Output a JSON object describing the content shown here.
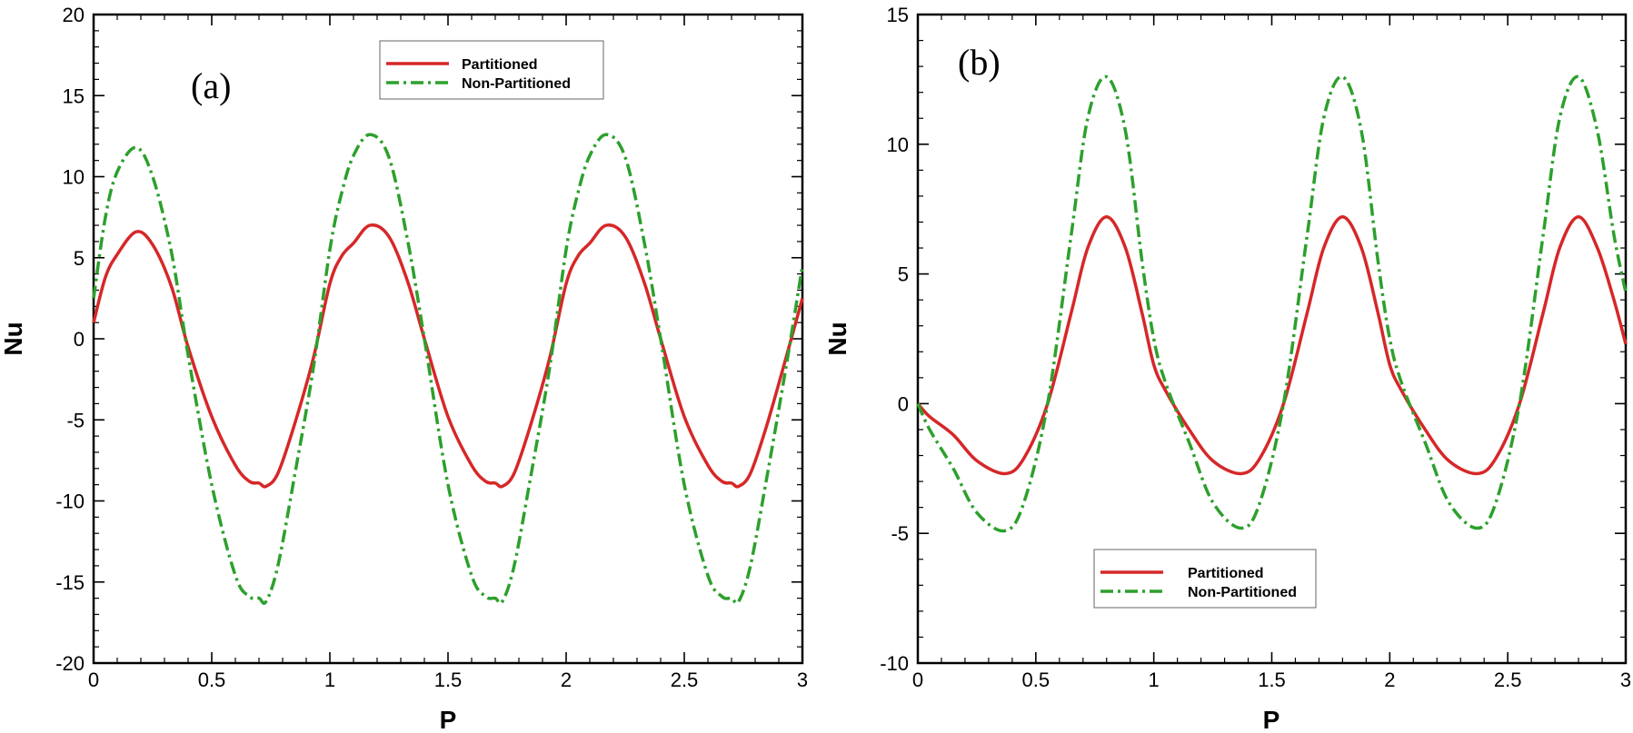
{
  "chart_data": [
    {
      "type": "line",
      "panel_label": "(a)",
      "xlabel": "P",
      "ylabel": "Nu",
      "xlim": [
        0,
        3
      ],
      "ylim": [
        -20,
        20
      ],
      "xticks": [
        0,
        0.5,
        1,
        1.5,
        2,
        2.5,
        3
      ],
      "xtick_labels": [
        "0",
        "0.5",
        "1",
        "1.5",
        "2",
        "2.5",
        "3"
      ],
      "yticks": [
        -20,
        -15,
        -10,
        -5,
        0,
        5,
        10,
        15,
        20
      ],
      "ytick_labels": [
        "-20",
        "-15",
        "-10",
        "-5",
        "0",
        "5",
        "10",
        "15",
        "20"
      ],
      "legend": {
        "position": "top-center"
      },
      "series": [
        {
          "name": "Partitioned",
          "color": "#d62728",
          "style": "solid",
          "x": [
            0,
            0.05,
            0.1,
            0.18,
            0.25,
            0.33,
            0.4,
            0.5,
            0.6,
            0.66,
            0.7,
            0.73,
            0.78,
            0.85,
            0.93,
            1.0,
            1.05,
            1.1,
            1.17,
            1.25,
            1.33,
            1.4,
            1.5,
            1.6,
            1.66,
            1.7,
            1.73,
            1.78,
            1.85,
            1.93,
            2.0,
            2.05,
            2.1,
            2.17,
            2.25,
            2.33,
            2.4,
            2.5,
            2.6,
            2.66,
            2.7,
            2.73,
            2.78,
            2.85,
            2.93,
            3.0
          ],
          "values": [
            1.0,
            3.8,
            5.2,
            6.6,
            5.8,
            3.2,
            -0.5,
            -4.8,
            -7.8,
            -8.8,
            -8.9,
            -9.1,
            -8.3,
            -5.3,
            -1.2,
            3.4,
            5.1,
            5.9,
            7.0,
            6.3,
            3.5,
            0.0,
            -4.8,
            -7.8,
            -8.8,
            -8.9,
            -9.1,
            -8.3,
            -5.3,
            -1.2,
            3.4,
            5.1,
            5.9,
            7.0,
            6.3,
            3.5,
            0.0,
            -4.8,
            -7.8,
            -8.8,
            -8.9,
            -9.1,
            -8.3,
            -5.3,
            -1.2,
            2.5
          ]
        },
        {
          "name": "Non-Partitioned",
          "color": "#2ca02c",
          "style": "dashdot",
          "x": [
            0,
            0.05,
            0.1,
            0.18,
            0.25,
            0.33,
            0.4,
            0.5,
            0.6,
            0.66,
            0.7,
            0.73,
            0.78,
            0.85,
            0.93,
            1.0,
            1.05,
            1.1,
            1.17,
            1.25,
            1.33,
            1.4,
            1.5,
            1.6,
            1.66,
            1.7,
            1.73,
            1.78,
            1.85,
            1.93,
            2.0,
            2.05,
            2.1,
            2.17,
            2.25,
            2.33,
            2.4,
            2.5,
            2.6,
            2.66,
            2.7,
            2.73,
            2.78,
            2.85,
            2.93,
            3.0
          ],
          "values": [
            2.5,
            7.5,
            10.3,
            11.8,
            10.0,
            5.3,
            -1.0,
            -9.0,
            -14.6,
            -15.9,
            -16.0,
            -16.2,
            -14.0,
            -8.5,
            -1.8,
            5.5,
            9.0,
            11.3,
            12.6,
            11.2,
            6.0,
            0.0,
            -9.0,
            -14.6,
            -15.9,
            -16.0,
            -16.2,
            -14.0,
            -8.5,
            -1.8,
            5.5,
            9.0,
            11.3,
            12.6,
            11.2,
            6.0,
            0.0,
            -9.0,
            -14.6,
            -15.9,
            -16.0,
            -16.2,
            -14.0,
            -8.5,
            -1.8,
            4.5
          ]
        }
      ]
    },
    {
      "type": "line",
      "panel_label": "(b)",
      "xlabel": "P",
      "ylabel": "Nu",
      "xlim": [
        0,
        3
      ],
      "ylim": [
        -10,
        15
      ],
      "xticks": [
        0,
        0.5,
        1,
        1.5,
        2,
        2.5,
        3
      ],
      "xtick_labels": [
        "0",
        "0.5",
        "1",
        "1.5",
        "2",
        "2.5",
        "3"
      ],
      "yticks": [
        -10,
        -5,
        0,
        5,
        10,
        15
      ],
      "ytick_labels": [
        "-10",
        "-5",
        "0",
        "5",
        "10",
        "15"
      ],
      "legend": {
        "position": "bottom-center"
      },
      "series": [
        {
          "name": "Partitioned",
          "color": "#d62728",
          "style": "solid",
          "x": [
            0,
            0.05,
            0.15,
            0.25,
            0.37,
            0.45,
            0.55,
            0.65,
            0.72,
            0.8,
            0.88,
            0.95,
            1.0,
            1.05,
            1.15,
            1.25,
            1.37,
            1.45,
            1.55,
            1.65,
            1.72,
            1.8,
            1.88,
            1.95,
            2.0,
            2.05,
            2.15,
            2.25,
            2.37,
            2.45,
            2.55,
            2.65,
            2.72,
            2.8,
            2.88,
            2.95,
            3.0
          ],
          "values": [
            0.0,
            -0.5,
            -1.2,
            -2.2,
            -2.7,
            -2.1,
            0.0,
            3.5,
            6.0,
            7.2,
            6.0,
            3.5,
            1.5,
            0.5,
            -1.0,
            -2.2,
            -2.7,
            -2.1,
            0.0,
            3.5,
            6.0,
            7.2,
            6.0,
            3.5,
            1.5,
            0.5,
            -1.0,
            -2.2,
            -2.7,
            -2.1,
            0.0,
            3.5,
            6.0,
            7.2,
            6.0,
            4.0,
            2.3
          ]
        },
        {
          "name": "Non-Partitioned",
          "color": "#2ca02c",
          "style": "dashdot",
          "x": [
            0,
            0.05,
            0.15,
            0.25,
            0.37,
            0.45,
            0.55,
            0.65,
            0.72,
            0.8,
            0.88,
            0.95,
            1.0,
            1.05,
            1.15,
            1.25,
            1.37,
            1.45,
            1.55,
            1.65,
            1.72,
            1.8,
            1.88,
            1.95,
            2.0,
            2.05,
            2.15,
            2.25,
            2.37,
            2.45,
            2.55,
            2.65,
            2.72,
            2.8,
            2.88,
            2.95,
            3.0
          ],
          "values": [
            0.0,
            -1.0,
            -2.5,
            -4.2,
            -4.9,
            -3.8,
            0.0,
            6.5,
            11.0,
            12.6,
            10.5,
            5.5,
            2.5,
            0.8,
            -1.5,
            -3.8,
            -4.8,
            -3.8,
            0.0,
            6.5,
            11.0,
            12.6,
            10.5,
            5.5,
            2.5,
            0.8,
            -1.5,
            -3.8,
            -4.8,
            -3.8,
            0.0,
            6.5,
            11.0,
            12.6,
            10.5,
            6.5,
            4.3
          ]
        }
      ]
    }
  ]
}
